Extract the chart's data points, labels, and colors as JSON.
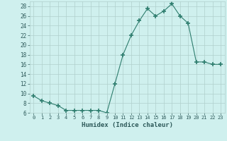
{
  "x": [
    0,
    1,
    2,
    3,
    4,
    5,
    6,
    7,
    8,
    9,
    10,
    11,
    12,
    13,
    14,
    15,
    16,
    17,
    18,
    19,
    20,
    21,
    22,
    23
  ],
  "y": [
    9.5,
    8.5,
    8.0,
    7.5,
    6.5,
    6.5,
    6.5,
    6.5,
    6.5,
    6.0,
    12.0,
    18.0,
    22.0,
    25.0,
    27.5,
    26.0,
    27.0,
    28.5,
    26.0,
    24.5,
    16.5,
    16.5,
    16.0,
    16.0
  ],
  "xlabel": "Humidex (Indice chaleur)",
  "line_color": "#2e7d6e",
  "marker": "+",
  "marker_size": 4,
  "marker_lw": 1.2,
  "bg_color": "#cff0ee",
  "grid_color": "#b0d0cc",
  "ylim": [
    6,
    29
  ],
  "xlim": [
    -0.5,
    23.5
  ],
  "yticks": [
    6,
    8,
    10,
    12,
    14,
    16,
    18,
    20,
    22,
    24,
    26,
    28
  ],
  "xticks": [
    0,
    1,
    2,
    3,
    4,
    5,
    6,
    7,
    8,
    9,
    10,
    11,
    12,
    13,
    14,
    15,
    16,
    17,
    18,
    19,
    20,
    21,
    22,
    23
  ],
  "tick_color": "#2e5a5a",
  "xlabel_color": "#2e5a5a"
}
